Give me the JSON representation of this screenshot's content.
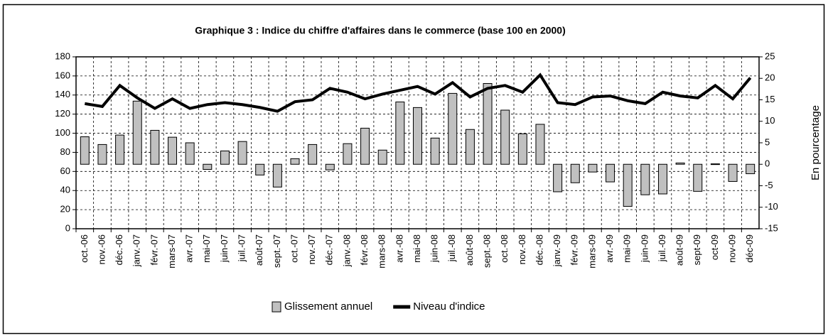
{
  "chart_data": {
    "type": "bar_line",
    "title": "Graphique 3 : Indice du chiffre d'affaires dans le commerce (base 100 en 2000)",
    "y2_label": "En pourcentage",
    "categories": [
      "oct.-06",
      "nov.-06",
      "déc.-06",
      "janv.-07",
      "févr.-07",
      "mars-07",
      "avr.-07",
      "mai-07",
      "juin-07",
      "juil.-07",
      "août-07",
      "sept.-07",
      "oct.-07",
      "nov.-07",
      "déc.-07",
      "janv.-08",
      "févr.-08",
      "mars-08",
      "avr.-08",
      "mai-08",
      "juin-08",
      "juil.-08",
      "août-08",
      "sept.-08",
      "oct.-08",
      "nov.-08",
      "déc.-08",
      "janv.-09",
      "févr.-09",
      "mars-09",
      "avr.-09",
      "mai-09",
      "juin-09",
      "juil.-09",
      "août-09",
      "sept-09",
      "oct-09",
      "nov-09",
      "déc-09"
    ],
    "series": [
      {
        "name": "Glissement annuel",
        "type": "bar",
        "axis": "y2",
        "color": "#c0c0c0",
        "values": [
          6.4,
          4.6,
          6.8,
          14.7,
          7.9,
          6.3,
          5.0,
          -1.2,
          3.1,
          5.3,
          -2.5,
          -5.3,
          1.3,
          4.6,
          -1.3,
          4.8,
          8.4,
          3.3,
          14.5,
          13.2,
          6.1,
          16.5,
          8.1,
          18.8,
          12.6,
          7.1,
          9.3,
          -6.4,
          -4.3,
          -1.8,
          -4.1,
          -9.8,
          -7.1,
          -6.9,
          0.3,
          -6.3,
          0.1,
          -4.0,
          -2.2
        ]
      },
      {
        "name": "Niveau d'indice",
        "type": "line",
        "axis": "y",
        "color": "#000000",
        "values": [
          131,
          128,
          150,
          137,
          126,
          136,
          126,
          130,
          132,
          130,
          127,
          123,
          133,
          135,
          147,
          143,
          136,
          141,
          145,
          149,
          141,
          153,
          138,
          147,
          150,
          143,
          161,
          132,
          130,
          138,
          139,
          134,
          131,
          143,
          139,
          137,
          150,
          136,
          158
        ]
      }
    ],
    "ylim": [
      0,
      180
    ],
    "yticks": [
      0,
      20,
      40,
      60,
      80,
      100,
      120,
      140,
      160,
      180
    ],
    "y2lim": [
      -15,
      25
    ],
    "y2ticks": [
      -15,
      -10,
      -5,
      0,
      5,
      10,
      15,
      20,
      25
    ],
    "grid": true,
    "legend": "bottom"
  }
}
